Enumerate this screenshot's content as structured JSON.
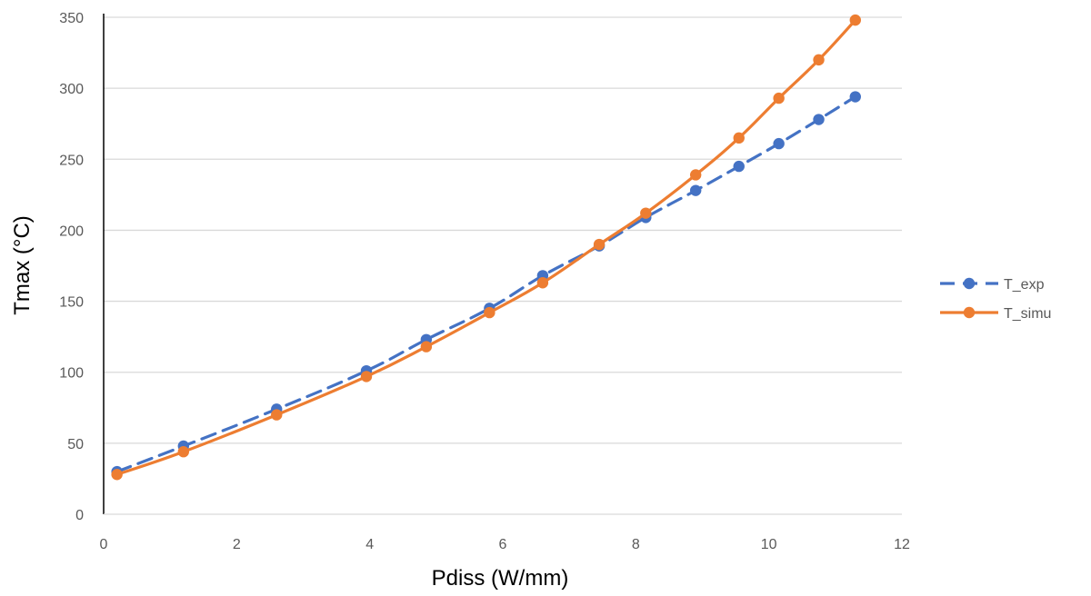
{
  "chart_data": {
    "type": "line",
    "xlabel": "Pdiss (W/mm)",
    "ylabel": "Tmax (°C)",
    "xlim": [
      0,
      12
    ],
    "ylim": [
      0,
      350
    ],
    "x_ticks": [
      0,
      2,
      4,
      6,
      8,
      10,
      12
    ],
    "y_ticks": [
      0,
      50,
      100,
      150,
      200,
      250,
      300,
      350
    ],
    "grid": "horizontal",
    "legend_position": "right",
    "series": [
      {
        "name": "T_exp",
        "color": "#4472C4",
        "line_style": "dashed",
        "x": [
          0.2,
          1.2,
          2.6,
          3.95,
          4.85,
          5.8,
          6.6,
          7.45,
          8.15,
          8.9,
          9.55,
          10.15,
          10.75,
          11.3
        ],
        "y": [
          30,
          48,
          74,
          101,
          123,
          145,
          168,
          189,
          209,
          228,
          245,
          261,
          278,
          294
        ]
      },
      {
        "name": "T_simu",
        "color": "#ED7D31",
        "line_style": "solid",
        "x": [
          0.2,
          1.2,
          2.6,
          3.95,
          4.85,
          5.8,
          6.6,
          7.45,
          8.15,
          8.9,
          9.55,
          10.15,
          10.75,
          11.3
        ],
        "y": [
          28,
          44,
          70,
          97,
          118,
          142,
          163,
          190,
          212,
          239,
          265,
          293,
          320,
          348
        ]
      }
    ]
  }
}
